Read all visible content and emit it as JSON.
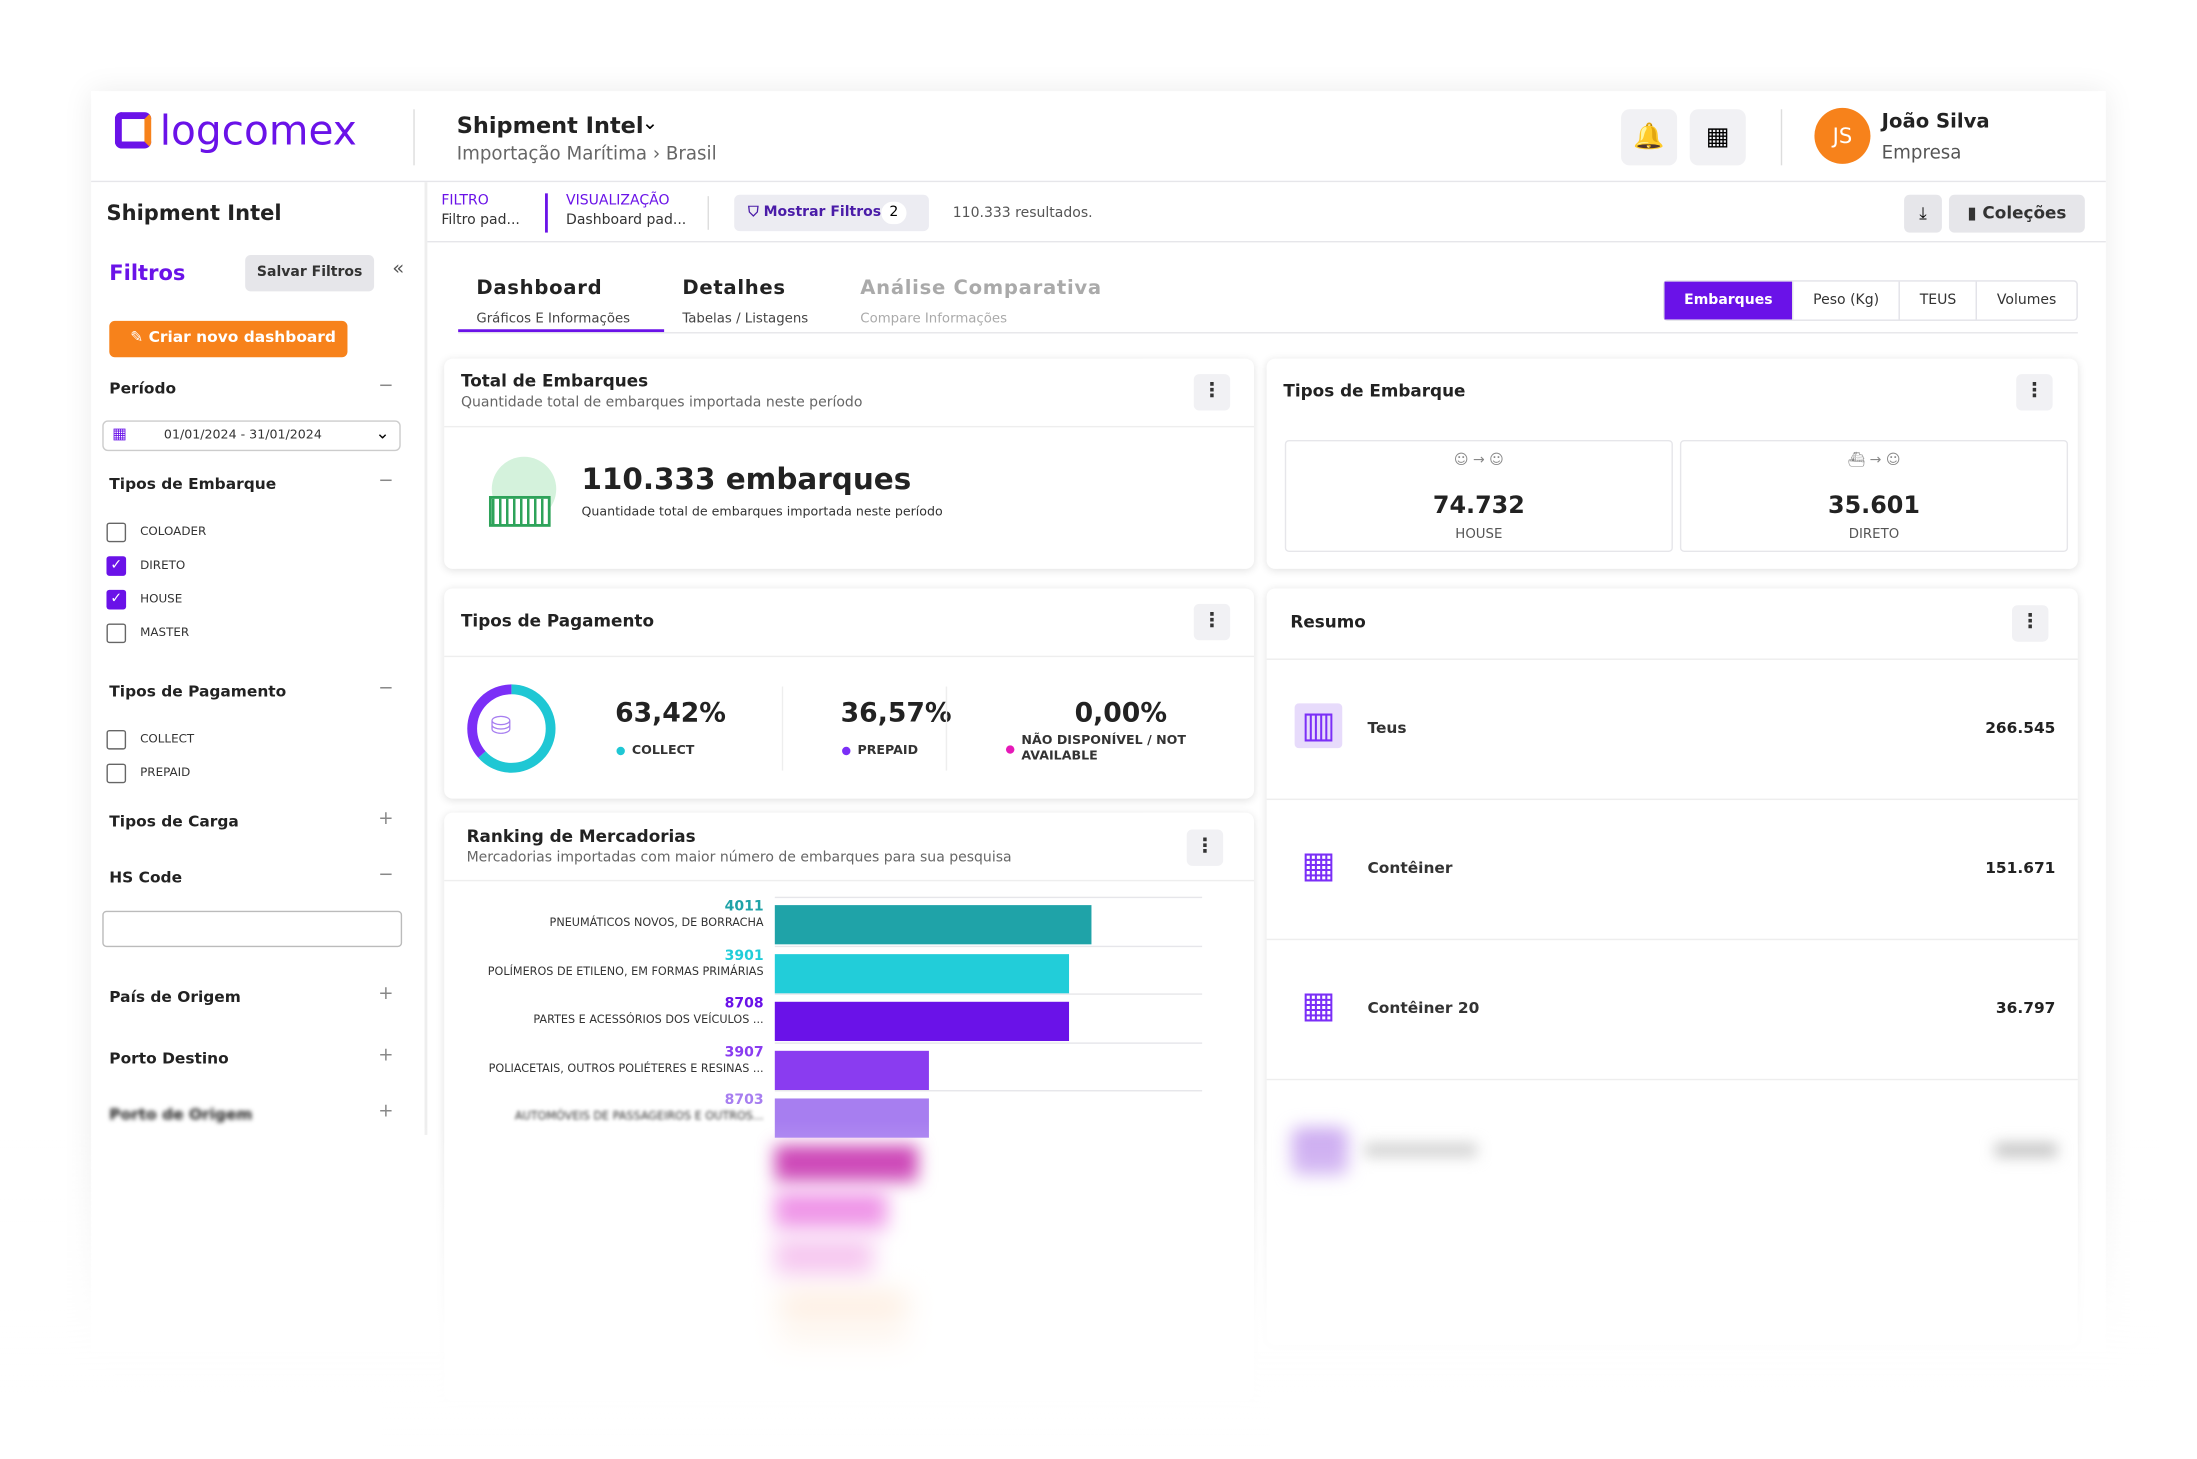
{
  "header": {
    "brand": "logcomex",
    "product": "Shipment Intel",
    "breadcrumb": [
      "Importação Marítima",
      "Brasil"
    ],
    "user": {
      "initials": "JS",
      "name": "João Silva",
      "company": "Empresa"
    }
  },
  "sidebar": {
    "title": "Shipment Intel",
    "filters_title": "Filtros",
    "save": "Salvar Filtros",
    "create": "Criar novo dashboard",
    "period": {
      "label": "Período",
      "value": "01/01/2024 - 31/01/2024"
    },
    "shipment_types": {
      "label": "Tipos de Embarque",
      "options": [
        {
          "label": "COLOADER",
          "checked": false
        },
        {
          "label": "DIRETO",
          "checked": true
        },
        {
          "label": "HOUSE",
          "checked": true
        },
        {
          "label": "MASTER",
          "checked": false
        }
      ]
    },
    "payment_types": {
      "label": "Tipos de Pagamento",
      "options": [
        {
          "label": "COLLECT",
          "checked": false
        },
        {
          "label": "PREPAID",
          "checked": false
        }
      ]
    },
    "sections": [
      {
        "label": "Tipos de Carga",
        "expanded": false
      },
      {
        "label": "HS Code",
        "expanded": true
      },
      {
        "label": "País de Origem",
        "expanded": false
      },
      {
        "label": "Porto Destino",
        "expanded": false
      },
      {
        "label": "Porto de Origem",
        "expanded": false
      }
    ]
  },
  "toolbar": {
    "filter": {
      "label": "FILTRO",
      "value": "Filtro pad..."
    },
    "view": {
      "label": "VISUALIZAÇÃO",
      "value": "Dashboard pad..."
    },
    "show_filters": "Mostrar Filtros",
    "filter_count": 2,
    "results": "110.333 resultados.",
    "collections": "Coleções"
  },
  "tabs": [
    {
      "title": "Dashboard",
      "subtitle": "Gráficos E Informações",
      "active": true
    },
    {
      "title": "Detalhes",
      "subtitle": "Tabelas / Listagens",
      "active": false
    },
    {
      "title": "Análise Comparativa",
      "subtitle": "Compare Informações",
      "active": false
    }
  ],
  "metric_toggle": {
    "options": [
      "Embarques",
      "Peso (Kg)",
      "TEUS",
      "Volumes"
    ],
    "active": 0
  },
  "total": {
    "title": "Total de Embarques",
    "subtitle": "Quantidade total de embarques importada neste período",
    "value": "110.333 embarques",
    "caption": "Quantidade total de embarques importada neste período"
  },
  "shipment_card": {
    "title": "Tipos de Embarque",
    "items": [
      {
        "value": "74.732",
        "label": "HOUSE"
      },
      {
        "value": "35.601",
        "label": "DIRETO"
      }
    ]
  },
  "payments": {
    "title": "Tipos de Pagamento",
    "items": [
      {
        "value": 63.42,
        "value_label": "63,42%",
        "label": "COLLECT",
        "color": "#1fc7d4"
      },
      {
        "value": 36.57,
        "value_label": "36,57%",
        "label": "PREPAID",
        "color": "#7b2ff7"
      },
      {
        "value": 0.0,
        "value_label": "0,00%",
        "label": "NÃO DISPONÍVEL / NOT AVAILABLE",
        "color": "#e619b8"
      }
    ]
  },
  "resumo": {
    "title": "Resumo",
    "items": [
      {
        "label": "Teus",
        "value": "266.545"
      },
      {
        "label": "Contêiner",
        "value": "151.671"
      },
      {
        "label": "Contêiner 20",
        "value": "36.797"
      }
    ]
  },
  "ranking": {
    "title": "Ranking de Mercadorias",
    "subtitle": "Mercadorias importadas com maior número de embarques para sua pesquisa",
    "xlim": [
      0,
      100
    ],
    "items": [
      {
        "code": "4011",
        "label": "PNEUMÁTICOS NOVOS, DE BORRACHA",
        "value": 74,
        "color": "#1fa3a8"
      },
      {
        "code": "3901",
        "label": "POLÍMEROS DE ETILENO, EM FORMAS PRIMÁRIAS",
        "value": 69,
        "color": "#22cdd9"
      },
      {
        "code": "8708",
        "label": "PARTES E ACESSÓRIOS DOS VEÍCULOS ...",
        "value": 69,
        "color": "#6a12e8"
      },
      {
        "code": "3907",
        "label": "POLIACETAIS, OUTROS POLIÉTERES E RESINAS ...",
        "value": 36,
        "color": "#8a3cf0"
      },
      {
        "code": "8703",
        "label": "AUTOMÓVEIS DE PASSAGEIROS E OUTROS...",
        "value": 36,
        "color": "#a77ef0"
      }
    ]
  }
}
